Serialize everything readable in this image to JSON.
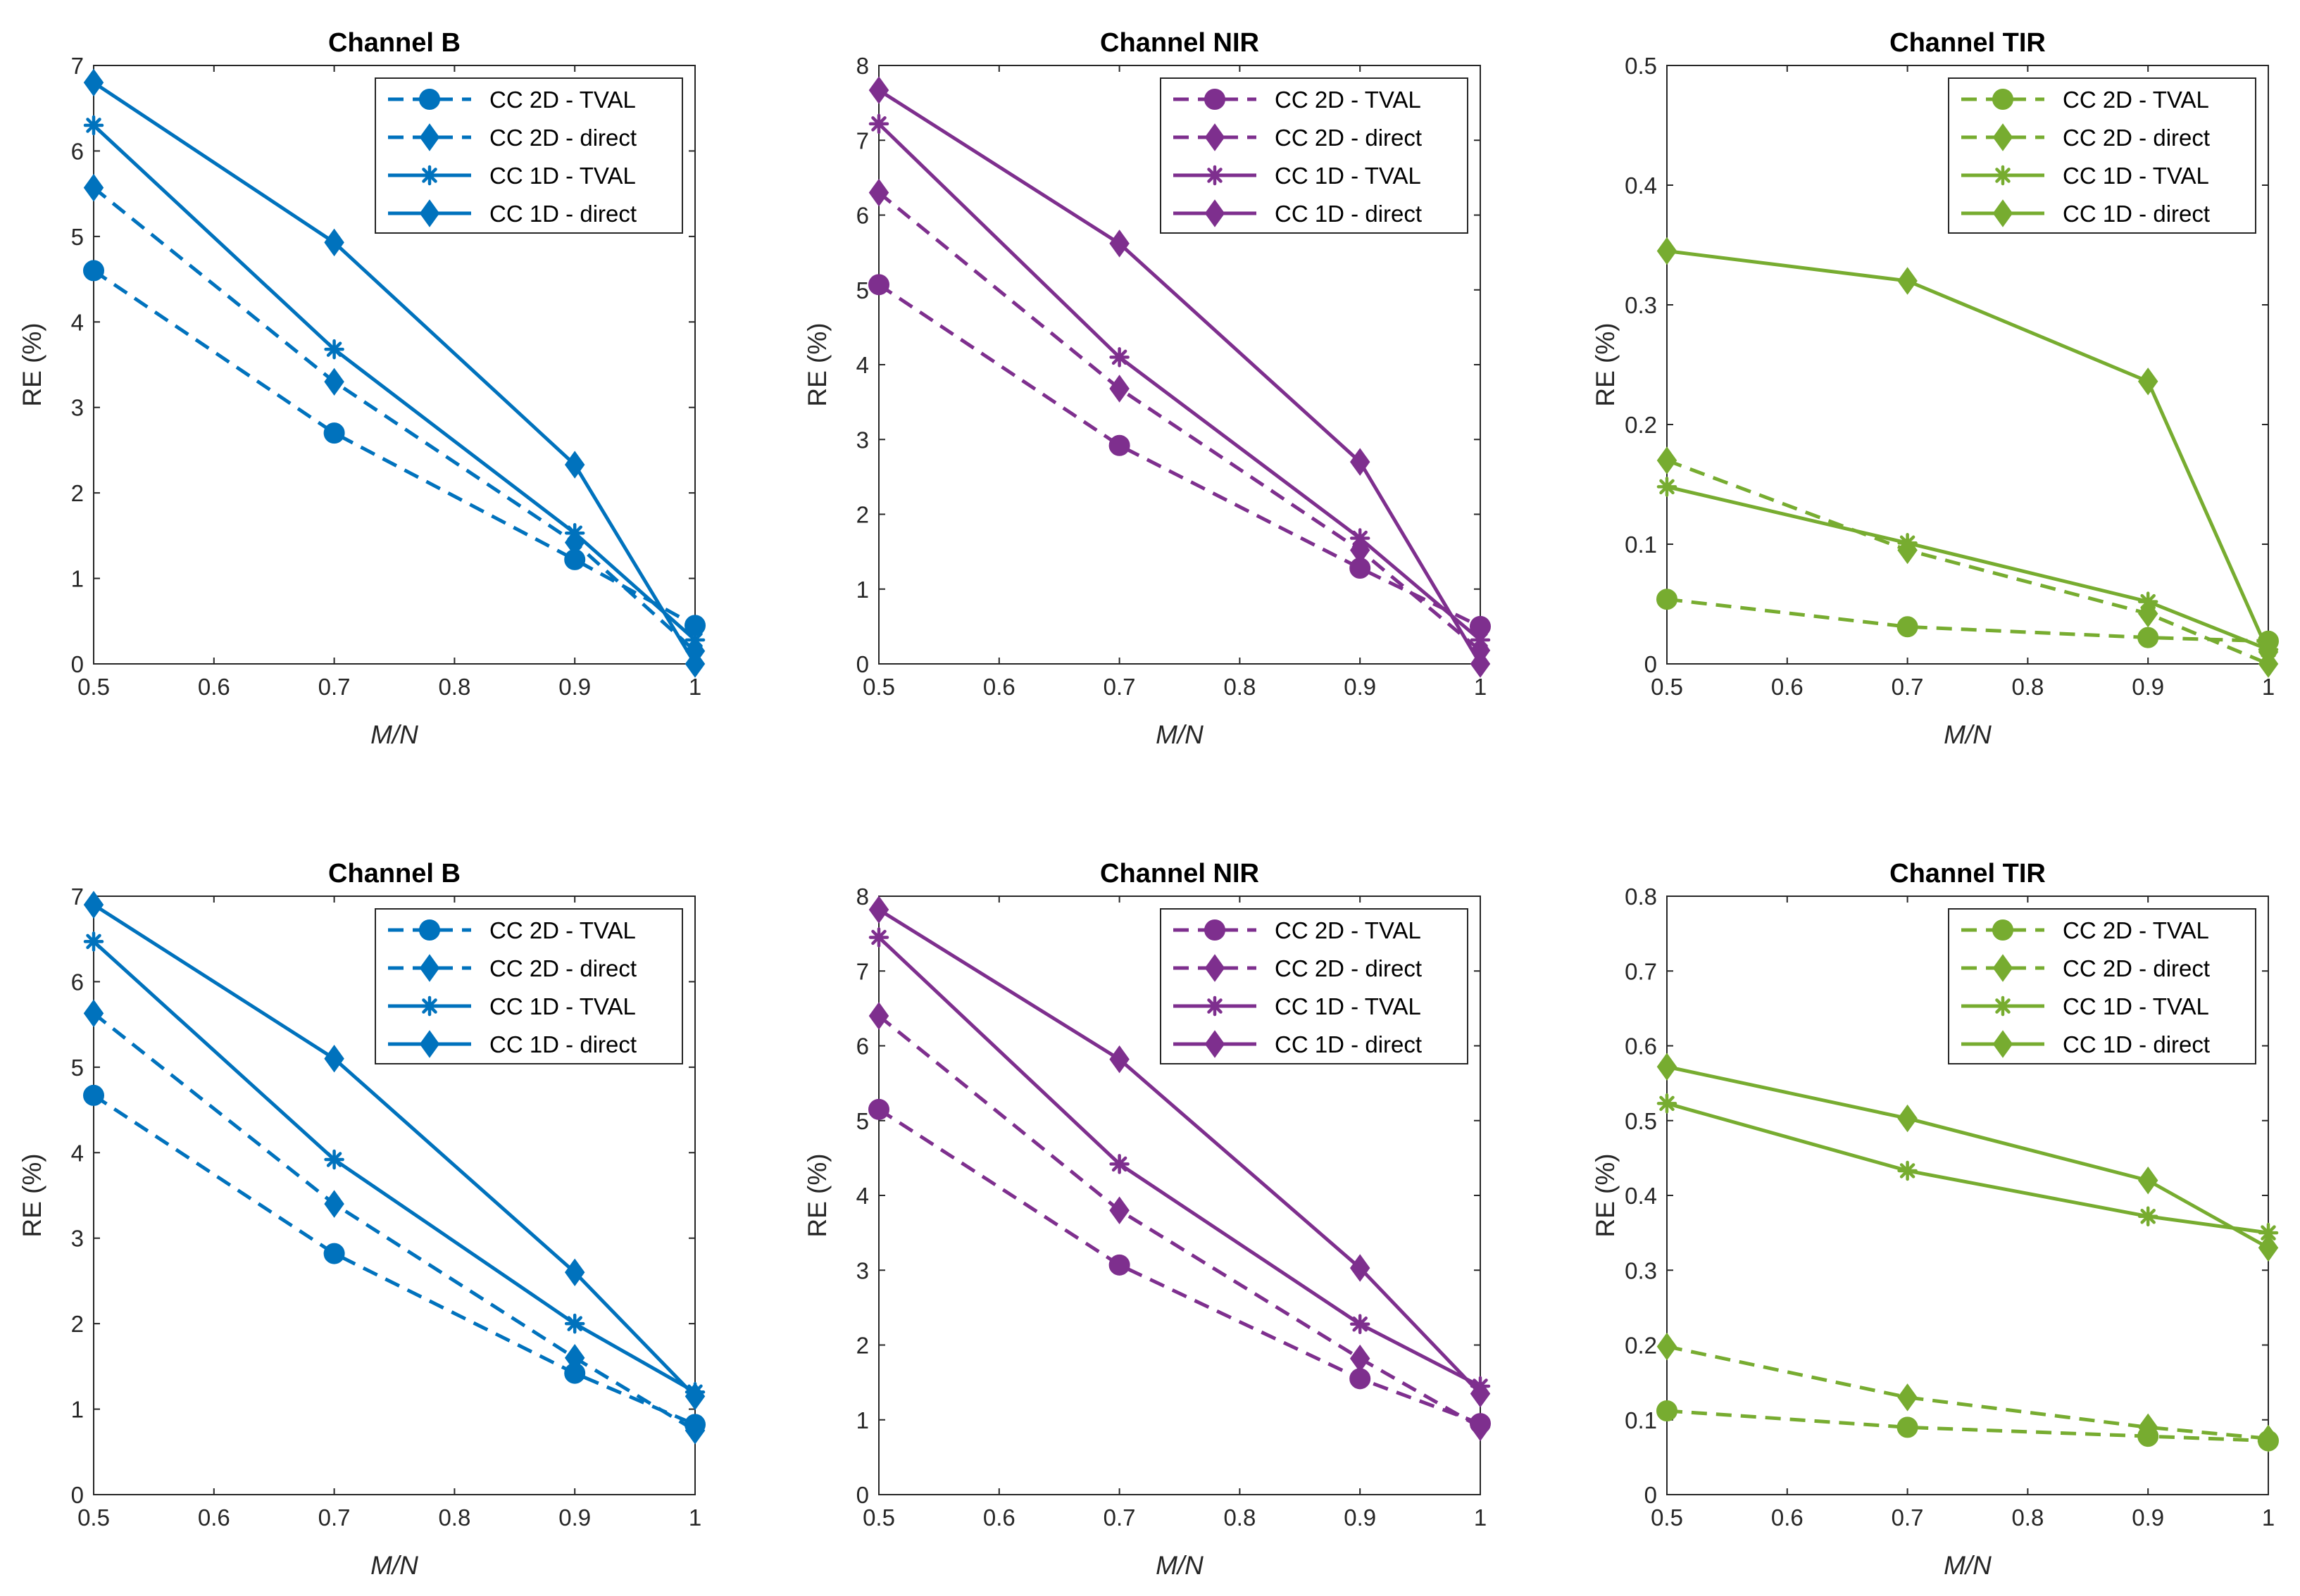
{
  "chart_data": [
    {
      "type": "line",
      "title": "Channel B",
      "xlabel": "M/N",
      "ylabel": "RE (%)",
      "color": "#0072BD",
      "xlim": [
        0.5,
        1
      ],
      "ylim": [
        0,
        7
      ],
      "xticks": [
        "0.5",
        "0.6",
        "0.7",
        "0.8",
        "0.9",
        "1"
      ],
      "yticks": [
        "0",
        "1",
        "2",
        "3",
        "4",
        "5",
        "6",
        "7"
      ],
      "legend_position": "top-right",
      "x": [
        0.5,
        0.7,
        0.9,
        1.0
      ],
      "series": [
        {
          "name": "CC 2D - TVAL",
          "style": "dashed",
          "marker": "circle",
          "values": [
            4.6,
            2.7,
            1.22,
            0.45
          ]
        },
        {
          "name": "CC 2D - direct",
          "style": "dashed",
          "marker": "diamond",
          "values": [
            5.57,
            3.3,
            1.42,
            0.15
          ]
        },
        {
          "name": "CC 1D - TVAL",
          "style": "solid",
          "marker": "asterisk",
          "values": [
            6.3,
            3.68,
            1.53,
            0.28
          ]
        },
        {
          "name": "CC 1D - direct",
          "style": "solid",
          "marker": "diamond",
          "values": [
            6.8,
            4.93,
            2.33,
            0.0
          ]
        }
      ]
    },
    {
      "type": "line",
      "title": "Channel NIR",
      "xlabel": "M/N",
      "ylabel": "RE (%)",
      "color": "#7E2F8E",
      "xlim": [
        0.5,
        1
      ],
      "ylim": [
        0,
        8
      ],
      "xticks": [
        "0.5",
        "0.6",
        "0.7",
        "0.8",
        "0.9",
        "1"
      ],
      "yticks": [
        "0",
        "1",
        "2",
        "3",
        "4",
        "5",
        "6",
        "7",
        "8"
      ],
      "legend_position": "top-right",
      "x": [
        0.5,
        0.7,
        0.9,
        1.0
      ],
      "series": [
        {
          "name": "CC 2D - TVAL",
          "style": "dashed",
          "marker": "circle",
          "values": [
            5.07,
            2.92,
            1.28,
            0.5
          ]
        },
        {
          "name": "CC 2D - direct",
          "style": "dashed",
          "marker": "diamond",
          "values": [
            6.3,
            3.68,
            1.52,
            0.18
          ]
        },
        {
          "name": "CC 1D - TVAL",
          "style": "solid",
          "marker": "asterisk",
          "values": [
            7.22,
            4.1,
            1.68,
            0.32
          ]
        },
        {
          "name": "CC 1D - direct",
          "style": "solid",
          "marker": "diamond",
          "values": [
            7.67,
            5.62,
            2.7,
            0.0
          ]
        }
      ]
    },
    {
      "type": "line",
      "title": "Channel TIR",
      "xlabel": "M/N",
      "ylabel": "RE (%)",
      "color": "#77AC30",
      "xlim": [
        0.5,
        1
      ],
      "ylim": [
        0,
        0.5
      ],
      "xticks": [
        "0.5",
        "0.6",
        "0.7",
        "0.8",
        "0.9",
        "1"
      ],
      "yticks": [
        "0",
        "0.1",
        "0.2",
        "0.3",
        "0.4",
        "0.5"
      ],
      "legend_position": "top-right",
      "x": [
        0.5,
        0.7,
        0.9,
        1.0
      ],
      "series": [
        {
          "name": "CC 2D - TVAL",
          "style": "dashed",
          "marker": "circle",
          "values": [
            0.054,
            0.031,
            0.022,
            0.019
          ]
        },
        {
          "name": "CC 2D - direct",
          "style": "dashed",
          "marker": "diamond",
          "values": [
            0.17,
            0.095,
            0.042,
            0.0
          ]
        },
        {
          "name": "CC 1D - TVAL",
          "style": "solid",
          "marker": "asterisk",
          "values": [
            0.148,
            0.101,
            0.052,
            0.012
          ]
        },
        {
          "name": "CC 1D - direct",
          "style": "solid",
          "marker": "diamond",
          "values": [
            0.345,
            0.32,
            0.236,
            0.01
          ]
        }
      ]
    },
    {
      "type": "line",
      "title": "Channel B",
      "xlabel": "M/N",
      "ylabel": "RE (%)",
      "color": "#0072BD",
      "xlim": [
        0.5,
        1
      ],
      "ylim": [
        0,
        7
      ],
      "xticks": [
        "0.5",
        "0.6",
        "0.7",
        "0.8",
        "0.9",
        "1"
      ],
      "yticks": [
        "0",
        "1",
        "2",
        "3",
        "4",
        "5",
        "6",
        "7"
      ],
      "legend_position": "top-right",
      "x": [
        0.5,
        0.7,
        0.9,
        1.0
      ],
      "series": [
        {
          "name": "CC 2D - TVAL",
          "style": "dashed",
          "marker": "circle",
          "values": [
            4.67,
            2.82,
            1.42,
            0.82
          ]
        },
        {
          "name": "CC 2D - direct",
          "style": "dashed",
          "marker": "diamond",
          "values": [
            5.63,
            3.4,
            1.6,
            0.75
          ]
        },
        {
          "name": "CC 1D - TVAL",
          "style": "solid",
          "marker": "asterisk",
          "values": [
            6.47,
            3.92,
            2.0,
            1.2
          ]
        },
        {
          "name": "CC 1D - direct",
          "style": "solid",
          "marker": "diamond",
          "values": [
            6.9,
            5.1,
            2.6,
            1.15
          ]
        }
      ]
    },
    {
      "type": "line",
      "title": "Channel NIR",
      "xlabel": "M/N",
      "ylabel": "RE (%)",
      "color": "#7E2F8E",
      "xlim": [
        0.5,
        1
      ],
      "ylim": [
        0,
        8
      ],
      "xticks": [
        "0.5",
        "0.6",
        "0.7",
        "0.8",
        "0.9",
        "1"
      ],
      "yticks": [
        "0",
        "1",
        "2",
        "3",
        "4",
        "5",
        "6",
        "7",
        "8"
      ],
      "legend_position": "top-right",
      "x": [
        0.5,
        0.7,
        0.9,
        1.0
      ],
      "series": [
        {
          "name": "CC 2D - TVAL",
          "style": "dashed",
          "marker": "circle",
          "values": [
            5.15,
            3.07,
            1.55,
            0.95
          ]
        },
        {
          "name": "CC 2D - direct",
          "style": "dashed",
          "marker": "diamond",
          "values": [
            6.4,
            3.8,
            1.82,
            0.9
          ]
        },
        {
          "name": "CC 1D - TVAL",
          "style": "solid",
          "marker": "asterisk",
          "values": [
            7.45,
            4.42,
            2.28,
            1.45
          ]
        },
        {
          "name": "CC 1D - direct",
          "style": "solid",
          "marker": "diamond",
          "values": [
            7.82,
            5.82,
            3.03,
            1.35
          ]
        }
      ]
    },
    {
      "type": "line",
      "title": "Channel TIR",
      "xlabel": "M/N",
      "ylabel": "RE (%)",
      "color": "#77AC30",
      "xlim": [
        0.5,
        1
      ],
      "ylim": [
        0,
        0.8
      ],
      "xticks": [
        "0.5",
        "0.6",
        "0.7",
        "0.8",
        "0.9",
        "1"
      ],
      "yticks": [
        "0",
        "0.1",
        "0.2",
        "0.3",
        "0.4",
        "0.5",
        "0.6",
        "0.7",
        "0.8"
      ],
      "legend_position": "top-right",
      "x": [
        0.5,
        0.7,
        0.9,
        1.0
      ],
      "series": [
        {
          "name": "CC 2D - TVAL",
          "style": "dashed",
          "marker": "circle",
          "values": [
            0.112,
            0.09,
            0.078,
            0.072
          ]
        },
        {
          "name": "CC 2D - direct",
          "style": "dashed",
          "marker": "diamond",
          "values": [
            0.198,
            0.13,
            0.09,
            0.075
          ]
        },
        {
          "name": "CC 1D - TVAL",
          "style": "solid",
          "marker": "asterisk",
          "values": [
            0.523,
            0.433,
            0.372,
            0.35
          ]
        },
        {
          "name": "CC 1D - direct",
          "style": "solid",
          "marker": "diamond",
          "values": [
            0.572,
            0.503,
            0.42,
            0.33
          ]
        }
      ]
    }
  ]
}
